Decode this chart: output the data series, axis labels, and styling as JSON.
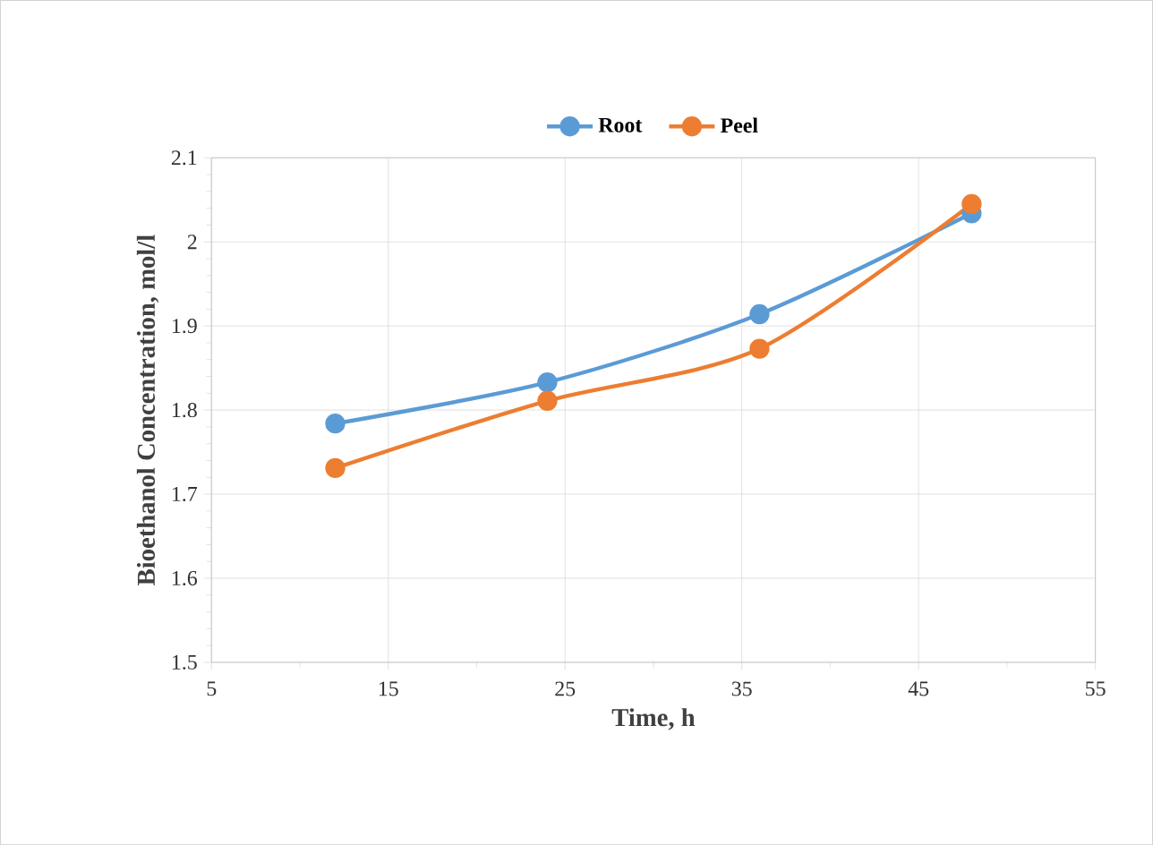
{
  "chart_data": {
    "type": "line",
    "xlabel": "Time, h",
    "ylabel": "Bioethanol Concentration, mol/l",
    "x": [
      12,
      24,
      36,
      48
    ],
    "series": [
      {
        "name": "Root",
        "color": "#5b9bd5",
        "values": [
          1.784,
          1.833,
          1.914,
          2.034
        ]
      },
      {
        "name": "Peel",
        "color": "#ed7d31",
        "values": [
          1.731,
          1.811,
          1.873,
          2.045
        ]
      }
    ],
    "xlim": [
      5,
      55
    ],
    "xticks": [
      5,
      15,
      25,
      35,
      45,
      55
    ],
    "ylim": [
      1.5,
      2.1
    ],
    "yticks": [
      1.5,
      1.6,
      1.7,
      1.8,
      1.9,
      2,
      2.1
    ],
    "grid": true,
    "legend": "top",
    "marker": "circle",
    "line_style": "solid"
  }
}
